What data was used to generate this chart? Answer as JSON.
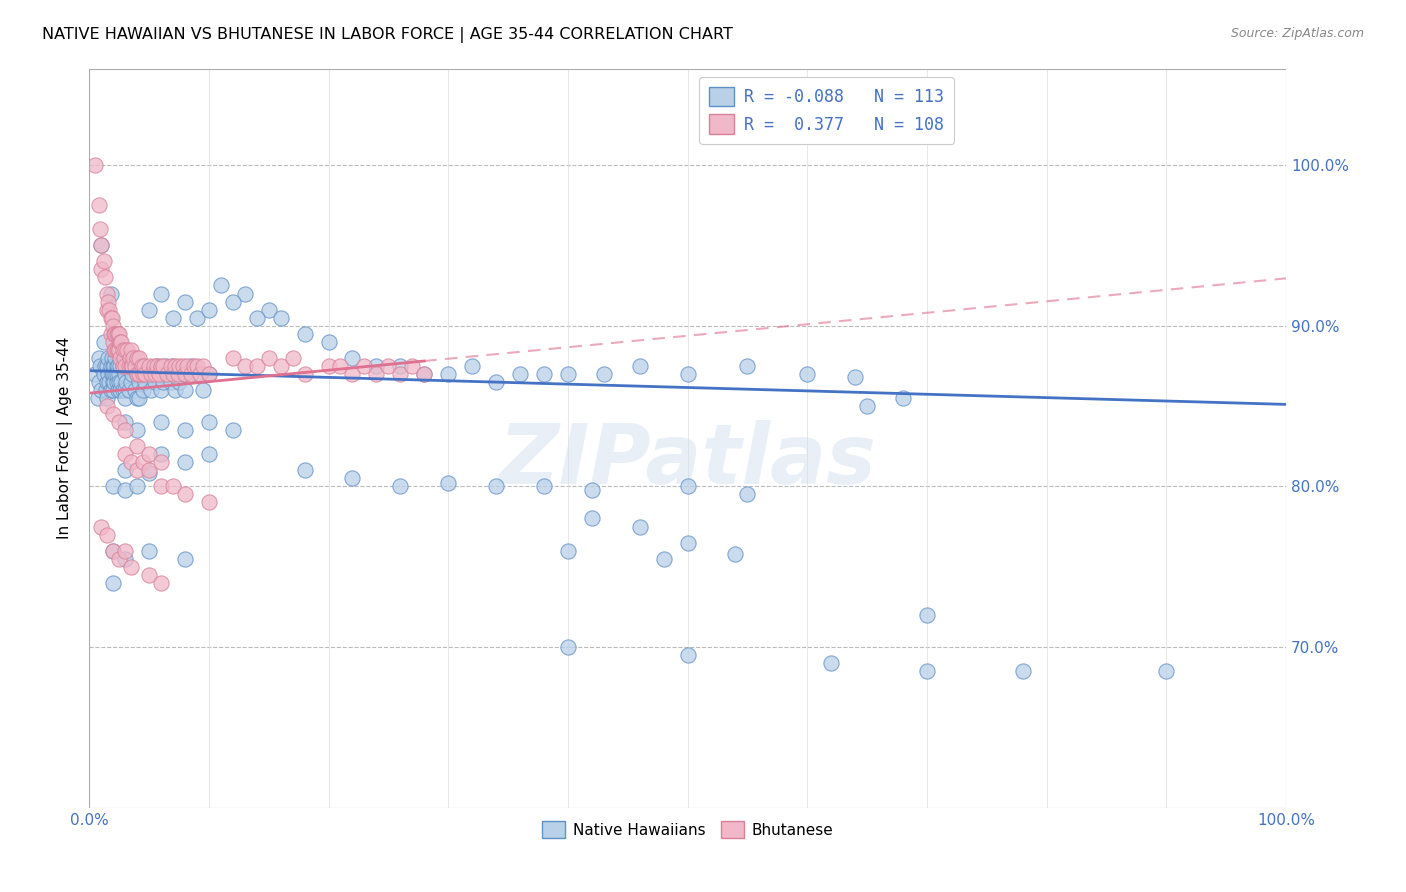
{
  "title": "NATIVE HAWAIIAN VS BHUTANESE IN LABOR FORCE | AGE 35-44 CORRELATION CHART",
  "source": "Source: ZipAtlas.com",
  "ylabel": "In Labor Force | Age 35-44",
  "r_blue": -0.088,
  "n_blue": 113,
  "r_pink": 0.377,
  "n_pink": 108,
  "color_blue_fill": "#b8d0e8",
  "color_blue_edge": "#6090c8",
  "color_pink_fill": "#f0b8c8",
  "color_pink_edge": "#d88098",
  "color_blue_line": "#4472c4",
  "color_pink_line": "#e07090",
  "watermark": "ZIPatlas",
  "xlim": [
    0.0,
    1.0
  ],
  "ylim": [
    0.6,
    1.06
  ],
  "yticks": [
    0.7,
    0.8,
    0.9,
    1.0
  ],
  "blue_scatter": [
    [
      0.005,
      0.87
    ],
    [
      0.007,
      0.855
    ],
    [
      0.008,
      0.88
    ],
    [
      0.008,
      0.865
    ],
    [
      0.009,
      0.875
    ],
    [
      0.01,
      0.86
    ],
    [
      0.01,
      0.95
    ],
    [
      0.012,
      0.89
    ],
    [
      0.012,
      0.87
    ],
    [
      0.013,
      0.875
    ],
    [
      0.014,
      0.86
    ],
    [
      0.015,
      0.875
    ],
    [
      0.015,
      0.855
    ],
    [
      0.015,
      0.865
    ],
    [
      0.016,
      0.87
    ],
    [
      0.016,
      0.88
    ],
    [
      0.017,
      0.865
    ],
    [
      0.018,
      0.92
    ],
    [
      0.018,
      0.875
    ],
    [
      0.018,
      0.86
    ],
    [
      0.019,
      0.87
    ],
    [
      0.019,
      0.88
    ],
    [
      0.02,
      0.865
    ],
    [
      0.02,
      0.875
    ],
    [
      0.02,
      0.86
    ],
    [
      0.02,
      0.87
    ],
    [
      0.021,
      0.875
    ],
    [
      0.021,
      0.865
    ],
    [
      0.022,
      0.87
    ],
    [
      0.022,
      0.88
    ],
    [
      0.023,
      0.875
    ],
    [
      0.023,
      0.865
    ],
    [
      0.023,
      0.87
    ],
    [
      0.024,
      0.86
    ],
    [
      0.024,
      0.875
    ],
    [
      0.025,
      0.87
    ],
    [
      0.025,
      0.865
    ],
    [
      0.026,
      0.875
    ],
    [
      0.026,
      0.86
    ],
    [
      0.027,
      0.865
    ],
    [
      0.028,
      0.875
    ],
    [
      0.028,
      0.86
    ],
    [
      0.03,
      0.87
    ],
    [
      0.03,
      0.86
    ],
    [
      0.03,
      0.855
    ],
    [
      0.031,
      0.865
    ],
    [
      0.032,
      0.875
    ],
    [
      0.033,
      0.86
    ],
    [
      0.035,
      0.865
    ],
    [
      0.036,
      0.87
    ],
    [
      0.038,
      0.86
    ],
    [
      0.04,
      0.87
    ],
    [
      0.04,
      0.855
    ],
    [
      0.042,
      0.865
    ],
    [
      0.042,
      0.855
    ],
    [
      0.043,
      0.875
    ],
    [
      0.045,
      0.86
    ],
    [
      0.047,
      0.865
    ],
    [
      0.05,
      0.87
    ],
    [
      0.052,
      0.86
    ],
    [
      0.055,
      0.865
    ],
    [
      0.057,
      0.875
    ],
    [
      0.06,
      0.86
    ],
    [
      0.062,
      0.865
    ],
    [
      0.064,
      0.875
    ],
    [
      0.065,
      0.87
    ],
    [
      0.068,
      0.865
    ],
    [
      0.07,
      0.875
    ],
    [
      0.072,
      0.86
    ],
    [
      0.075,
      0.865
    ],
    [
      0.078,
      0.87
    ],
    [
      0.08,
      0.86
    ],
    [
      0.085,
      0.875
    ],
    [
      0.09,
      0.87
    ],
    [
      0.095,
      0.86
    ],
    [
      0.1,
      0.87
    ],
    [
      0.05,
      0.91
    ],
    [
      0.06,
      0.92
    ],
    [
      0.07,
      0.905
    ],
    [
      0.08,
      0.915
    ],
    [
      0.09,
      0.905
    ],
    [
      0.1,
      0.91
    ],
    [
      0.11,
      0.925
    ],
    [
      0.13,
      0.92
    ],
    [
      0.15,
      0.91
    ],
    [
      0.12,
      0.915
    ],
    [
      0.14,
      0.905
    ],
    [
      0.16,
      0.905
    ],
    [
      0.18,
      0.895
    ],
    [
      0.2,
      0.89
    ],
    [
      0.22,
      0.88
    ],
    [
      0.24,
      0.875
    ],
    [
      0.26,
      0.875
    ],
    [
      0.28,
      0.87
    ],
    [
      0.3,
      0.87
    ],
    [
      0.32,
      0.875
    ],
    [
      0.34,
      0.865
    ],
    [
      0.36,
      0.87
    ],
    [
      0.38,
      0.87
    ],
    [
      0.4,
      0.87
    ],
    [
      0.43,
      0.87
    ],
    [
      0.46,
      0.875
    ],
    [
      0.5,
      0.87
    ],
    [
      0.55,
      0.875
    ],
    [
      0.6,
      0.87
    ],
    [
      0.64,
      0.868
    ],
    [
      0.65,
      0.85
    ],
    [
      0.68,
      0.855
    ],
    [
      0.03,
      0.84
    ],
    [
      0.04,
      0.835
    ],
    [
      0.06,
      0.84
    ],
    [
      0.08,
      0.835
    ],
    [
      0.1,
      0.84
    ],
    [
      0.12,
      0.835
    ],
    [
      0.06,
      0.82
    ],
    [
      0.08,
      0.815
    ],
    [
      0.1,
      0.82
    ],
    [
      0.03,
      0.81
    ],
    [
      0.05,
      0.808
    ],
    [
      0.02,
      0.8
    ],
    [
      0.03,
      0.798
    ],
    [
      0.04,
      0.8
    ],
    [
      0.18,
      0.81
    ],
    [
      0.22,
      0.805
    ],
    [
      0.26,
      0.8
    ],
    [
      0.3,
      0.802
    ],
    [
      0.34,
      0.8
    ],
    [
      0.38,
      0.8
    ],
    [
      0.42,
      0.798
    ],
    [
      0.5,
      0.8
    ],
    [
      0.55,
      0.795
    ],
    [
      0.02,
      0.76
    ],
    [
      0.03,
      0.755
    ],
    [
      0.02,
      0.74
    ],
    [
      0.05,
      0.76
    ],
    [
      0.08,
      0.755
    ],
    [
      0.42,
      0.78
    ],
    [
      0.46,
      0.775
    ],
    [
      0.4,
      0.76
    ],
    [
      0.48,
      0.755
    ],
    [
      0.5,
      0.765
    ],
    [
      0.54,
      0.758
    ],
    [
      0.7,
      0.72
    ],
    [
      0.4,
      0.7
    ],
    [
      0.5,
      0.695
    ],
    [
      0.62,
      0.69
    ],
    [
      0.7,
      0.685
    ],
    [
      0.78,
      0.685
    ],
    [
      0.9,
      0.685
    ]
  ],
  "pink_scatter": [
    [
      0.005,
      1.0
    ],
    [
      0.008,
      0.975
    ],
    [
      0.009,
      0.96
    ],
    [
      0.01,
      0.95
    ],
    [
      0.01,
      0.935
    ],
    [
      0.012,
      0.94
    ],
    [
      0.013,
      0.93
    ],
    [
      0.015,
      0.92
    ],
    [
      0.015,
      0.91
    ],
    [
      0.016,
      0.915
    ],
    [
      0.017,
      0.91
    ],
    [
      0.018,
      0.905
    ],
    [
      0.018,
      0.895
    ],
    [
      0.019,
      0.905
    ],
    [
      0.02,
      0.9
    ],
    [
      0.02,
      0.89
    ],
    [
      0.021,
      0.895
    ],
    [
      0.021,
      0.885
    ],
    [
      0.022,
      0.895
    ],
    [
      0.022,
      0.885
    ],
    [
      0.023,
      0.895
    ],
    [
      0.023,
      0.885
    ],
    [
      0.024,
      0.895
    ],
    [
      0.024,
      0.885
    ],
    [
      0.025,
      0.895
    ],
    [
      0.025,
      0.885
    ],
    [
      0.026,
      0.89
    ],
    [
      0.026,
      0.88
    ],
    [
      0.027,
      0.89
    ],
    [
      0.028,
      0.885
    ],
    [
      0.028,
      0.875
    ],
    [
      0.029,
      0.88
    ],
    [
      0.03,
      0.885
    ],
    [
      0.03,
      0.875
    ],
    [
      0.032,
      0.885
    ],
    [
      0.033,
      0.875
    ],
    [
      0.034,
      0.88
    ],
    [
      0.035,
      0.885
    ],
    [
      0.035,
      0.875
    ],
    [
      0.036,
      0.875
    ],
    [
      0.037,
      0.88
    ],
    [
      0.038,
      0.875
    ],
    [
      0.04,
      0.88
    ],
    [
      0.04,
      0.87
    ],
    [
      0.042,
      0.88
    ],
    [
      0.042,
      0.87
    ],
    [
      0.044,
      0.875
    ],
    [
      0.045,
      0.87
    ],
    [
      0.046,
      0.875
    ],
    [
      0.047,
      0.87
    ],
    [
      0.05,
      0.875
    ],
    [
      0.052,
      0.87
    ],
    [
      0.054,
      0.875
    ],
    [
      0.055,
      0.87
    ],
    [
      0.057,
      0.875
    ],
    [
      0.058,
      0.87
    ],
    [
      0.06,
      0.875
    ],
    [
      0.062,
      0.875
    ],
    [
      0.065,
      0.87
    ],
    [
      0.068,
      0.875
    ],
    [
      0.07,
      0.87
    ],
    [
      0.072,
      0.875
    ],
    [
      0.074,
      0.87
    ],
    [
      0.075,
      0.875
    ],
    [
      0.078,
      0.875
    ],
    [
      0.08,
      0.87
    ],
    [
      0.082,
      0.875
    ],
    [
      0.085,
      0.87
    ],
    [
      0.088,
      0.875
    ],
    [
      0.09,
      0.875
    ],
    [
      0.093,
      0.87
    ],
    [
      0.095,
      0.875
    ],
    [
      0.1,
      0.87
    ],
    [
      0.12,
      0.88
    ],
    [
      0.13,
      0.875
    ],
    [
      0.14,
      0.875
    ],
    [
      0.15,
      0.88
    ],
    [
      0.16,
      0.875
    ],
    [
      0.17,
      0.88
    ],
    [
      0.18,
      0.87
    ],
    [
      0.2,
      0.875
    ],
    [
      0.21,
      0.875
    ],
    [
      0.22,
      0.87
    ],
    [
      0.23,
      0.875
    ],
    [
      0.24,
      0.87
    ],
    [
      0.25,
      0.875
    ],
    [
      0.26,
      0.87
    ],
    [
      0.27,
      0.875
    ],
    [
      0.28,
      0.87
    ],
    [
      0.015,
      0.85
    ],
    [
      0.02,
      0.845
    ],
    [
      0.025,
      0.84
    ],
    [
      0.03,
      0.835
    ],
    [
      0.03,
      0.82
    ],
    [
      0.035,
      0.815
    ],
    [
      0.04,
      0.81
    ],
    [
      0.04,
      0.825
    ],
    [
      0.045,
      0.815
    ],
    [
      0.05,
      0.81
    ],
    [
      0.05,
      0.82
    ],
    [
      0.06,
      0.815
    ],
    [
      0.06,
      0.8
    ],
    [
      0.07,
      0.8
    ],
    [
      0.08,
      0.795
    ],
    [
      0.1,
      0.79
    ],
    [
      0.01,
      0.775
    ],
    [
      0.015,
      0.77
    ],
    [
      0.02,
      0.76
    ],
    [
      0.025,
      0.755
    ],
    [
      0.03,
      0.76
    ],
    [
      0.035,
      0.75
    ],
    [
      0.05,
      0.745
    ],
    [
      0.06,
      0.74
    ]
  ]
}
